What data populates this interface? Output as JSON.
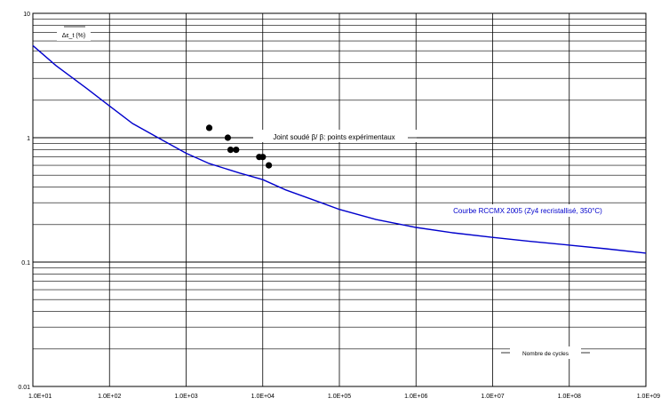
{
  "chart_data": {
    "type": "line",
    "title": "",
    "xlabel": "Nombre de cycles",
    "ylabel": "Δε_t (%)",
    "xscale": "log",
    "yscale": "log",
    "xlim": [
      10,
      1000000000
    ],
    "ylim": [
      0.01,
      10
    ],
    "grid": true,
    "x_tick_labels": [
      "1.0E+01",
      "1.0E+02",
      "1.0E+03",
      "1.0E+04",
      "1.0E+05",
      "1.0E+06",
      "1.0E+07",
      "1.0E+08",
      "1.0E+09"
    ],
    "y_tick_labels": [
      "10",
      "1",
      "0.1",
      "0.01"
    ],
    "y_tick_values": [
      10,
      1,
      0.1,
      0.01
    ],
    "curve_color": "#0000cc",
    "point_color": "#000000",
    "series": [
      {
        "name": "Courbe RCCMX 2005 (Zy4 recristallisé, 350°C)",
        "kind": "line",
        "x": [
          10,
          20,
          50,
          100,
          200,
          500,
          1000,
          2000,
          5000,
          10000,
          20000,
          50000,
          100000,
          300000,
          1000000,
          3000000,
          10000000,
          30000000,
          100000000,
          300000000,
          1000000000
        ],
        "y": [
          5.5,
          3.8,
          2.5,
          1.8,
          1.3,
          0.95,
          0.75,
          0.62,
          0.52,
          0.46,
          0.38,
          0.31,
          0.265,
          0.22,
          0.19,
          0.172,
          0.158,
          0.147,
          0.137,
          0.128,
          0.118
        ]
      },
      {
        "name": "Joint soudé β/ β: points expérimentaux",
        "kind": "scatter",
        "x": [
          2000,
          3500,
          3800,
          4500,
          9000,
          10000,
          12000
        ],
        "y": [
          1.2,
          1.0,
          0.8,
          0.8,
          0.7,
          0.7,
          0.6
        ]
      }
    ],
    "annotations": {
      "ylabel_box": "Δε_t (%)",
      "scatter_label": "Joint soudé β/ β: points expérimentaux",
      "curve_label": "Courbe  RCCMX 2005  (Zy4 recristallisé,  350°C)",
      "xlabel_box": "Nombre de cycles"
    }
  }
}
